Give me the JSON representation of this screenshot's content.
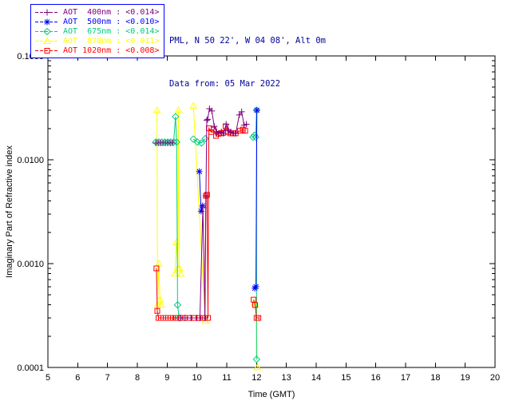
{
  "header": {
    "location_line": "PML, N 50 22', W 04 08', Alt 0m",
    "data_line": "Data from: 05 Mar 2022"
  },
  "legend": {
    "border_color": "#0000ff",
    "entries": [
      {
        "id": "400nm",
        "label": "AOT  400nm : <0.014>",
        "color": "#800080",
        "marker": "plus"
      },
      {
        "id": "500nm",
        "label": "AOT  500nm : <0.010>",
        "color": "#0000ff",
        "marker": "asterisk"
      },
      {
        "id": "675nm",
        "label": "AOT  675nm : <0.014>",
        "color": "#00cc80",
        "marker": "diamond"
      },
      {
        "id": "870nm",
        "label": "AOT  870nm : <0.011>",
        "color": "#ffff00",
        "marker": "triangle"
      },
      {
        "id": "1020nm",
        "label": "AOT 1020nm : <0.008>",
        "color": "#ff0000",
        "marker": "square"
      }
    ]
  },
  "chart_data": {
    "type": "line",
    "title": "",
    "xlabel": "Time (GMT)",
    "ylabel": "Imaginary Part of Refractive index",
    "xlim": [
      5,
      20
    ],
    "ylim": [
      0.0001,
      0.1
    ],
    "yscale": "log",
    "grid": false,
    "legend_position": "top-left-outside",
    "xticks": [
      5,
      6,
      7,
      8,
      9,
      10,
      11,
      12,
      13,
      14,
      15,
      16,
      17,
      18,
      19,
      20
    ],
    "yticks": [
      {
        "value": 0.0001,
        "label": "0.0001"
      },
      {
        "value": 0.001,
        "label": "0.0010"
      },
      {
        "value": 0.01,
        "label": "0.0100"
      },
      {
        "value": 0.1,
        "label": "0.1000"
      }
    ],
    "series": [
      {
        "name": "AOT 400nm",
        "wavelength": "400nm",
        "mean": "<0.014>",
        "color": "#800080",
        "marker": "plus",
        "points": [
          [
            8.62,
            0.0145
          ],
          [
            8.7,
            0.0145
          ],
          [
            8.78,
            0.0145
          ],
          [
            8.86,
            0.0145
          ],
          [
            8.94,
            0.0145
          ],
          [
            9.02,
            0.0145
          ],
          [
            9.1,
            0.0145
          ],
          [
            9.18,
            0.0145
          ],
          null,
          [
            9.45,
            0.0003
          ],
          [
            9.6,
            0.0003
          ],
          [
            9.8,
            0.0003
          ],
          [
            10.0,
            0.0003
          ],
          [
            10.1,
            0.0003
          ],
          [
            10.2,
            0.0035
          ],
          [
            10.27,
            0.0003
          ],
          [
            10.3,
            0.0045
          ],
          [
            10.33,
            0.024
          ],
          [
            10.36,
            0.0245
          ],
          [
            10.42,
            0.031
          ],
          [
            10.5,
            0.0295
          ],
          [
            10.58,
            0.021
          ],
          [
            10.66,
            0.0185
          ],
          [
            10.74,
            0.018
          ],
          [
            10.82,
            0.0185
          ],
          [
            10.9,
            0.018
          ],
          [
            10.98,
            0.022
          ],
          [
            11.06,
            0.019
          ],
          [
            11.14,
            0.0185
          ],
          [
            11.22,
            0.018
          ],
          [
            11.3,
            0.018
          ],
          [
            11.42,
            0.027
          ],
          [
            11.5,
            0.029
          ],
          [
            11.58,
            0.0215
          ],
          [
            11.66,
            0.022
          ]
        ]
      },
      {
        "name": "AOT 500nm",
        "wavelength": "500nm",
        "mean": "<0.010>",
        "color": "#0000ff",
        "marker": "asterisk",
        "points": [
          [
            10.08,
            0.0077
          ],
          [
            10.14,
            0.0032
          ],
          [
            10.19,
            0.0036
          ],
          null,
          [
            11.94,
            0.00058
          ],
          [
            11.98,
            0.0006
          ],
          [
            12.01,
            0.03
          ]
        ]
      },
      {
        "name": "AOT 675nm",
        "wavelength": "675nm",
        "mean": "<0.014>",
        "color": "#00cc80",
        "marker": "diamond",
        "points": [
          [
            8.62,
            0.0148
          ],
          [
            8.72,
            0.0148
          ],
          [
            8.82,
            0.0148
          ],
          [
            8.92,
            0.0148
          ],
          [
            9.02,
            0.0148
          ],
          [
            9.12,
            0.0148
          ],
          [
            9.22,
            0.0148
          ],
          [
            9.28,
            0.026
          ],
          [
            9.32,
            0.0148
          ],
          [
            9.35,
            0.0004
          ],
          [
            9.4,
            0.0003
          ],
          null,
          [
            9.88,
            0.0158
          ],
          [
            10.02,
            0.0148
          ],
          [
            10.15,
            0.0145
          ],
          [
            10.28,
            0.016
          ],
          null,
          [
            11.88,
            0.0165
          ],
          [
            11.93,
            0.0172
          ],
          [
            11.97,
            0.0165
          ],
          [
            12.0,
            0.03
          ],
          [
            12.0,
            0.00012
          ]
        ]
      },
      {
        "name": "AOT 870nm",
        "wavelength": "870nm",
        "mean": "<0.011>",
        "color": "#ffff00",
        "marker": "triangle",
        "points": [
          [
            8.66,
            0.03
          ],
          [
            8.68,
            0.0004
          ],
          [
            8.72,
            0.001
          ],
          [
            8.76,
            0.00045
          ],
          [
            8.8,
            0.0004
          ],
          null,
          [
            9.26,
            0.0008
          ],
          [
            9.31,
            0.0016
          ],
          [
            9.36,
            0.0009
          ],
          [
            9.38,
            0.03
          ],
          [
            9.41,
            0.0009
          ],
          [
            9.46,
            0.0008
          ],
          null,
          [
            9.88,
            0.033
          ],
          [
            10.28,
            0.00028
          ],
          null,
          [
            11.93,
            0.00042
          ],
          [
            11.97,
            0.0004
          ],
          [
            12.03,
            0.0001
          ]
        ]
      },
      {
        "name": "AOT 1020nm",
        "wavelength": "1020nm",
        "mean": "<0.008>",
        "color": "#ff0000",
        "marker": "square",
        "points": [
          [
            8.64,
            0.0009
          ],
          [
            8.67,
            0.00035
          ],
          [
            8.71,
            0.0003
          ],
          [
            8.79,
            0.0003
          ],
          [
            8.87,
            0.0003
          ],
          [
            8.95,
            0.0003
          ],
          [
            9.03,
            0.0003
          ],
          [
            9.11,
            0.0003
          ],
          [
            9.19,
            0.0003
          ],
          [
            9.3,
            0.0003
          ],
          [
            9.45,
            0.0003
          ],
          [
            9.6,
            0.0003
          ],
          [
            9.75,
            0.0003
          ],
          [
            9.9,
            0.0003
          ],
          [
            10.05,
            0.0003
          ],
          [
            10.18,
            0.0003
          ],
          [
            10.26,
            0.0003
          ],
          [
            10.3,
            0.0045
          ],
          [
            10.34,
            0.0046
          ],
          [
            10.37,
            0.0003
          ],
          [
            10.4,
            0.0201
          ],
          [
            10.48,
            0.0185
          ],
          [
            10.56,
            0.0195
          ],
          [
            10.64,
            0.017
          ],
          [
            10.72,
            0.0178
          ],
          [
            10.8,
            0.018
          ],
          [
            10.88,
            0.0182
          ],
          [
            10.96,
            0.021
          ],
          [
            11.04,
            0.0185
          ],
          [
            11.12,
            0.018
          ],
          [
            11.2,
            0.018
          ],
          [
            11.3,
            0.018
          ],
          [
            11.44,
            0.019
          ],
          [
            11.54,
            0.0195
          ],
          [
            11.62,
            0.019
          ],
          null,
          [
            11.9,
            0.00045
          ],
          [
            11.95,
            0.0004
          ],
          [
            12.0,
            0.0003
          ],
          [
            12.06,
            0.0003
          ]
        ]
      }
    ]
  }
}
